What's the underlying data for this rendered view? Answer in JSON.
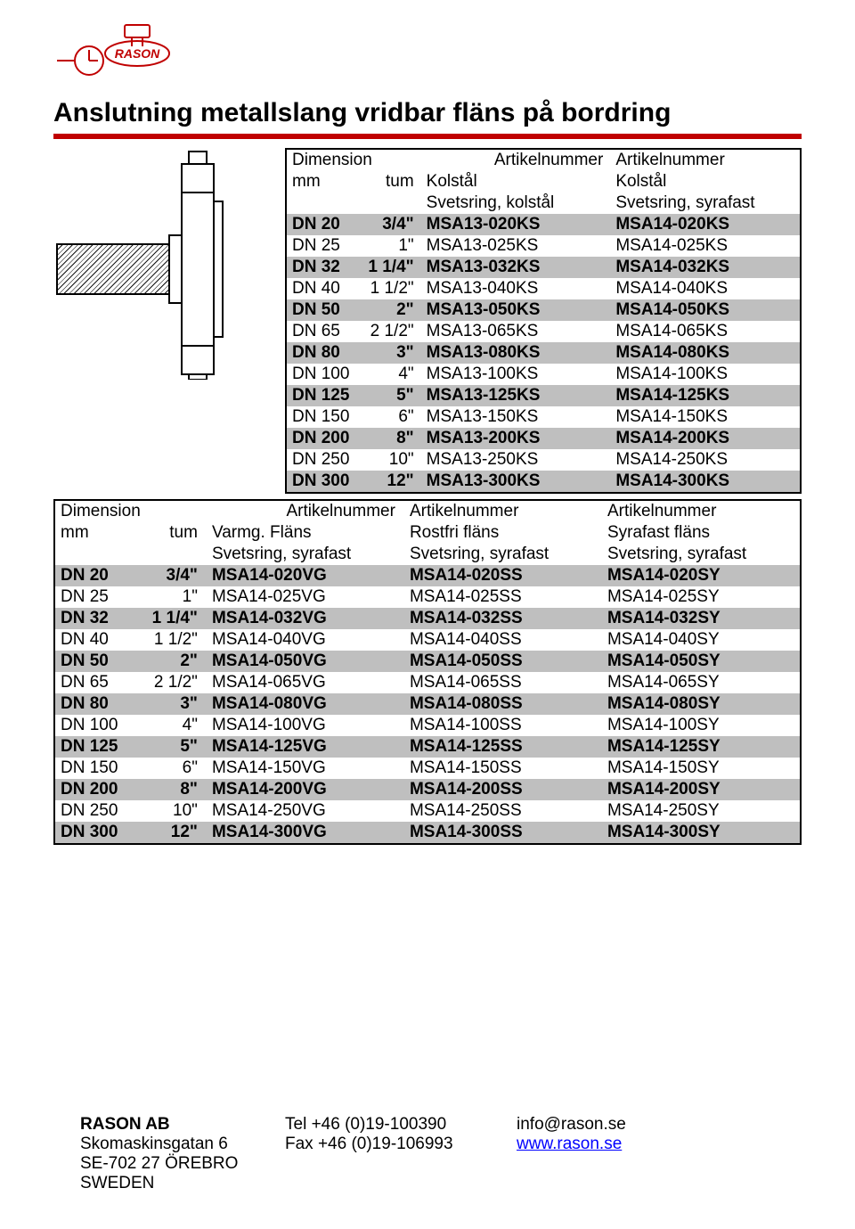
{
  "title": "Anslutning metallslang vridbar fläns på bordring",
  "accent_color": "#c00000",
  "shade_color": "#bfbfbf",
  "logo_text": "RASON",
  "table1": {
    "head_row1": [
      "Dimension",
      "",
      "Artikelnummer",
      "Artikelnummer"
    ],
    "head_row2": [
      "mm",
      "tum",
      "Kolstål",
      "Kolstål"
    ],
    "head_row3": [
      "",
      "",
      "Svetsring, kolstål",
      "Svetsring, syrafast"
    ],
    "rows": [
      {
        "shade": true,
        "c": [
          "DN 20",
          "3/4\"",
          "MSA13-020KS",
          "MSA14-020KS"
        ]
      },
      {
        "shade": false,
        "c": [
          "DN 25",
          "1\"",
          "MSA13-025KS",
          "MSA14-025KS"
        ]
      },
      {
        "shade": true,
        "c": [
          "DN 32",
          "1 1/4\"",
          "MSA13-032KS",
          "MSA14-032KS"
        ]
      },
      {
        "shade": false,
        "c": [
          "DN 40",
          "1 1/2\"",
          "MSA13-040KS",
          "MSA14-040KS"
        ]
      },
      {
        "shade": true,
        "c": [
          "DN 50",
          "2\"",
          "MSA13-050KS",
          "MSA14-050KS"
        ]
      },
      {
        "shade": false,
        "c": [
          "DN 65",
          "2 1/2\"",
          "MSA13-065KS",
          "MSA14-065KS"
        ]
      },
      {
        "shade": true,
        "c": [
          "DN 80",
          "3\"",
          "MSA13-080KS",
          "MSA14-080KS"
        ]
      },
      {
        "shade": false,
        "c": [
          "DN 100",
          "4\"",
          "MSA13-100KS",
          "MSA14-100KS"
        ]
      },
      {
        "shade": true,
        "c": [
          "DN 125",
          "5\"",
          "MSA13-125KS",
          "MSA14-125KS"
        ]
      },
      {
        "shade": false,
        "c": [
          "DN 150",
          "6\"",
          "MSA13-150KS",
          "MSA14-150KS"
        ]
      },
      {
        "shade": true,
        "c": [
          "DN 200",
          "8\"",
          "MSA13-200KS",
          "MSA14-200KS"
        ]
      },
      {
        "shade": false,
        "c": [
          "DN 250",
          "10\"",
          "MSA13-250KS",
          "MSA14-250KS"
        ]
      },
      {
        "shade": true,
        "c": [
          "DN 300",
          "12\"",
          "MSA13-300KS",
          "MSA14-300KS"
        ]
      }
    ]
  },
  "table2": {
    "head_row1": [
      "Dimension",
      "",
      "Artikelnummer",
      "Artikelnummer",
      "Artikelnummer"
    ],
    "head_row2": [
      "mm",
      "tum",
      "Varmg. Fläns",
      "Rostfri fläns",
      "Syrafast fläns"
    ],
    "head_row3": [
      "",
      "",
      "Svetsring, syrafast",
      "Svetsring, syrafast",
      "Svetsring, syrafast"
    ],
    "rows": [
      {
        "shade": true,
        "c": [
          "DN 20",
          "3/4\"",
          "MSA14-020VG",
          "MSA14-020SS",
          "MSA14-020SY"
        ]
      },
      {
        "shade": false,
        "c": [
          "DN 25",
          "1\"",
          "MSA14-025VG",
          "MSA14-025SS",
          "MSA14-025SY"
        ]
      },
      {
        "shade": true,
        "c": [
          "DN 32",
          "1 1/4\"",
          "MSA14-032VG",
          "MSA14-032SS",
          "MSA14-032SY"
        ]
      },
      {
        "shade": false,
        "c": [
          "DN 40",
          "1 1/2\"",
          "MSA14-040VG",
          "MSA14-040SS",
          "MSA14-040SY"
        ]
      },
      {
        "shade": true,
        "c": [
          "DN 50",
          "2\"",
          "MSA14-050VG",
          "MSA14-050SS",
          "MSA14-050SY"
        ]
      },
      {
        "shade": false,
        "c": [
          "DN 65",
          "2 1/2\"",
          "MSA14-065VG",
          "MSA14-065SS",
          "MSA14-065SY"
        ]
      },
      {
        "shade": true,
        "c": [
          "DN 80",
          "3\"",
          "MSA14-080VG",
          "MSA14-080SS",
          "MSA14-080SY"
        ]
      },
      {
        "shade": false,
        "c": [
          "DN 100",
          "4\"",
          "MSA14-100VG",
          "MSA14-100SS",
          "MSA14-100SY"
        ]
      },
      {
        "shade": true,
        "c": [
          "DN 125",
          "5\"",
          "MSA14-125VG",
          "MSA14-125SS",
          "MSA14-125SY"
        ]
      },
      {
        "shade": false,
        "c": [
          "DN 150",
          "6\"",
          "MSA14-150VG",
          "MSA14-150SS",
          "MSA14-150SY"
        ]
      },
      {
        "shade": true,
        "c": [
          "DN 200",
          "8\"",
          "MSA14-200VG",
          "MSA14-200SS",
          "MSA14-200SY"
        ]
      },
      {
        "shade": false,
        "c": [
          "DN 250",
          "10\"",
          "MSA14-250VG",
          "MSA14-250SS",
          "MSA14-250SY"
        ]
      },
      {
        "shade": true,
        "c": [
          "DN 300",
          "12\"",
          "MSA14-300VG",
          "MSA14-300SS",
          "MSA14-300SY"
        ]
      }
    ]
  },
  "footer": {
    "company": "RASON AB",
    "addr1": "Skomaskinsgatan 6",
    "addr2": "SE-702 27  ÖREBRO",
    "addr3": "SWEDEN",
    "tel": "Tel +46 (0)19-100390",
    "fax": "Fax +46 (0)19-106993",
    "email": "info@rason.se",
    "web": "www.rason.se"
  }
}
